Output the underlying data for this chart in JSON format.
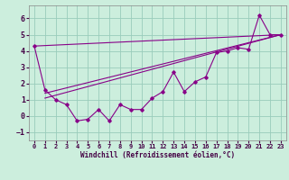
{
  "title": "",
  "xlabel": "Windchill (Refroidissement éolien,°C)",
  "bg_color": "#cceedd",
  "grid_color": "#99ccbb",
  "line_color": "#880088",
  "xlim": [
    -0.5,
    23.5
  ],
  "ylim": [
    -1.5,
    6.8
  ],
  "yticks": [
    -1,
    0,
    1,
    2,
    3,
    4,
    5,
    6
  ],
  "xticks": [
    0,
    1,
    2,
    3,
    4,
    5,
    6,
    7,
    8,
    9,
    10,
    11,
    12,
    13,
    14,
    15,
    16,
    17,
    18,
    19,
    20,
    21,
    22,
    23
  ],
  "data_line": [
    4.3,
    1.6,
    1.0,
    0.7,
    -0.3,
    -0.2,
    0.4,
    -0.3,
    0.7,
    0.4,
    0.4,
    1.1,
    1.5,
    2.7,
    1.5,
    2.1,
    2.4,
    3.9,
    4.0,
    4.2,
    4.1,
    6.2,
    5.0,
    5.0
  ],
  "trend1_x": [
    0,
    23
  ],
  "trend1_y": [
    4.3,
    5.0
  ],
  "trend2_x": [
    1,
    23
  ],
  "trend2_y": [
    1.4,
    5.0
  ],
  "trend3_x": [
    1,
    23
  ],
  "trend3_y": [
    1.1,
    5.0
  ],
  "xlabel_fontsize": 5.5,
  "tick_fontsize_x": 5,
  "tick_fontsize_y": 6
}
